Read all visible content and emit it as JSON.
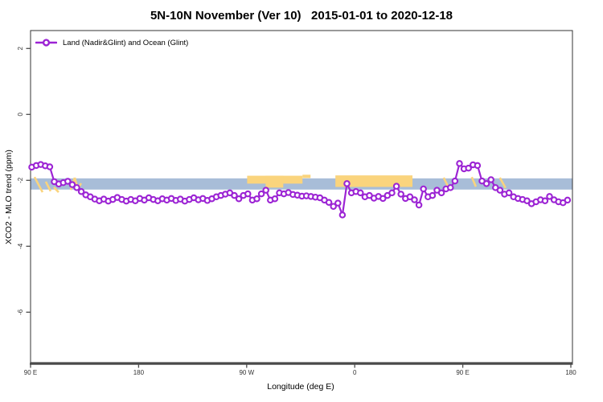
{
  "title": "5N-10N November (Ver 10)   2015-01-01 to 2020-12-18",
  "legend": {
    "label": "Land (Nadir&Glint) and Ocean (Glint)"
  },
  "axes": {
    "x_label": "Longitude (deg E)",
    "y_label": "XCO2 - MLO trend (ppm)",
    "x_ticks": [
      {
        "lon": 90,
        "label": "90 E"
      },
      {
        "lon": 180,
        "label": "180"
      },
      {
        "lon": 270,
        "label": "90 W"
      },
      {
        "lon": 360,
        "label": "0"
      },
      {
        "lon": 450,
        "label": "90 E"
      },
      {
        "lon": 540,
        "label": "180"
      }
    ],
    "y_ticks": [
      {
        "v": 2,
        "label": "2"
      },
      {
        "v": 0,
        "label": "0"
      },
      {
        "v": -2,
        "label": "-2"
      },
      {
        "v": -4,
        "label": "-4"
      },
      {
        "v": -6,
        "label": "-6"
      }
    ]
  },
  "colors": {
    "series": "#9c24d4",
    "marker_fill": "#ffffff",
    "band_ocean_blue": "#a8bdd8",
    "band_land_yellow": "#fad47d",
    "axis_box": "#333333",
    "axis_line": "#4d4d4d",
    "tick_text": "#333333"
  },
  "chart_data": {
    "type": "line",
    "title": "5N-10N November (Ver 10)   2015-01-01 to 2020-12-18",
    "xlabel": "Longitude (deg E)",
    "ylabel": "XCO2 - MLO trend (ppm)",
    "x_axis_note": "longitude axis wraps: 90E eastward around globe to 180 (450 deg span)",
    "x_range": [
      90,
      540
    ],
    "ylim": [
      -7.53,
      2.54
    ],
    "grid": false,
    "legend_position": "top-left inside",
    "series": [
      {
        "name": "Land (Nadir&Glint) and Ocean (Glint)",
        "lon_start": 91,
        "lon_step": 3.75,
        "values": [
          -1.6,
          -1.55,
          -1.52,
          -1.56,
          -1.59,
          -2.04,
          -2.11,
          -2.07,
          -2.03,
          -2.13,
          -2.22,
          -2.34,
          -2.44,
          -2.5,
          -2.57,
          -2.62,
          -2.57,
          -2.63,
          -2.58,
          -2.52,
          -2.58,
          -2.63,
          -2.58,
          -2.62,
          -2.55,
          -2.6,
          -2.53,
          -2.58,
          -2.62,
          -2.56,
          -2.6,
          -2.55,
          -2.61,
          -2.57,
          -2.63,
          -2.58,
          -2.53,
          -2.59,
          -2.55,
          -2.61,
          -2.56,
          -2.5,
          -2.46,
          -2.42,
          -2.38,
          -2.46,
          -2.56,
          -2.46,
          -2.41,
          -2.6,
          -2.56,
          -2.41,
          -2.3,
          -2.6,
          -2.56,
          -2.38,
          -2.41,
          -2.37,
          -2.43,
          -2.45,
          -2.48,
          -2.47,
          -2.49,
          -2.51,
          -2.53,
          -2.6,
          -2.67,
          -2.79,
          -2.69,
          -3.05,
          -2.1,
          -2.38,
          -2.34,
          -2.38,
          -2.5,
          -2.46,
          -2.54,
          -2.49,
          -2.55,
          -2.46,
          -2.38,
          -2.18,
          -2.42,
          -2.55,
          -2.5,
          -2.59,
          -2.75,
          -2.26,
          -2.5,
          -2.46,
          -2.3,
          -2.38,
          -2.26,
          -2.22,
          -2.02,
          -1.49,
          -1.65,
          -1.63,
          -1.53,
          -1.55,
          -2.02,
          -2.1,
          -1.98,
          -2.22,
          -2.3,
          -2.42,
          -2.38,
          -2.5,
          -2.55,
          -2.58,
          -2.62,
          -2.71,
          -2.65,
          -2.59,
          -2.62,
          -2.49,
          -2.59,
          -2.65,
          -2.68,
          -2.6
        ]
      }
    ],
    "bands": {
      "ocean_blue": {
        "lon_start": 90,
        "lon_end": 540,
        "v_top": -1.94,
        "v_bottom": -2.28
      },
      "land_yellow_blocks": [
        {
          "lon_start": 270.4,
          "lon_end": 316.5,
          "v_top": -1.86,
          "v_bottom": -2.1
        },
        {
          "lon_start": 285.8,
          "lon_end": 300.5,
          "v_top": -1.86,
          "v_bottom": -2.22
        },
        {
          "lon_start": 316.5,
          "lon_end": 323.2,
          "v_top": -1.83,
          "v_bottom": -1.93
        },
        {
          "lon_start": 343.9,
          "lon_end": 408.1,
          "v_top": -1.85,
          "v_bottom": -2.2
        }
      ],
      "land_yellow_strokes": [
        [
          93.3,
          -1.9,
          100.0,
          -2.36
        ],
        [
          102.7,
          -2.04,
          106.7,
          -2.33
        ],
        [
          109.4,
          -2.21,
          113.4,
          -2.36
        ],
        [
          123.4,
          -2.29,
          126.8,
          -1.92
        ],
        [
          126.8,
          -1.92,
          129.4,
          -2.26
        ],
        [
          129.4,
          -2.26,
          132.1,
          -2.09
        ],
        [
          434.1,
          -1.92,
          438.1,
          -2.21
        ],
        [
          457.5,
          -1.9,
          460.9,
          -2.19
        ],
        [
          480.9,
          -1.92,
          485.6,
          -2.23
        ]
      ]
    }
  }
}
